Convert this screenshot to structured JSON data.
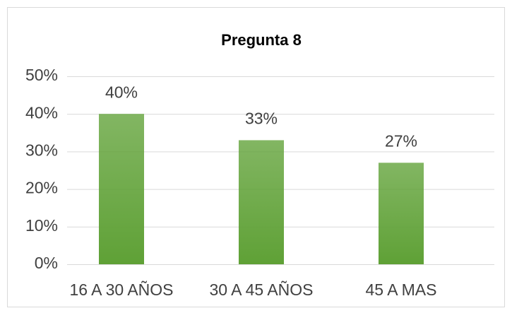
{
  "chart_data": {
    "type": "bar",
    "title": "Pregunta 8",
    "categories": [
      "16 A 30 AÑOS",
      "30 A 45 AÑOS",
      "45 A MAS"
    ],
    "values": [
      40,
      33,
      27
    ],
    "value_labels": [
      "40%",
      "33%",
      "27%"
    ],
    "color": "#5fa136",
    "ylim": [
      0,
      50
    ],
    "yticks": [
      {
        "value": 0,
        "label": "0%"
      },
      {
        "value": 10,
        "label": "10%"
      },
      {
        "value": 20,
        "label": "20%"
      },
      {
        "value": 30,
        "label": "30%"
      },
      {
        "value": 40,
        "label": "40%"
      },
      {
        "value": 50,
        "label": "50%"
      }
    ],
    "grid": true
  }
}
